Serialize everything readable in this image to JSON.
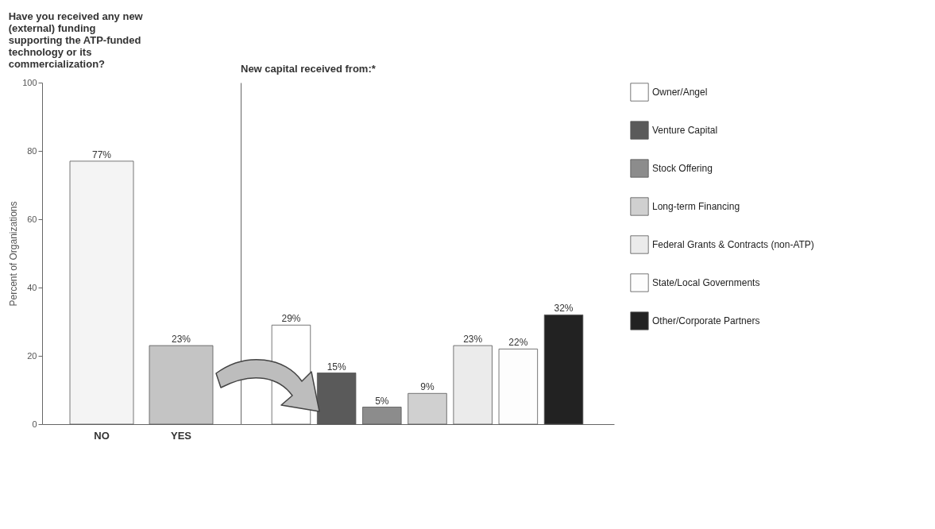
{
  "chart_data": [
    {
      "type": "bar",
      "title": "Have you received any new (external) funding supporting the ATP-funded technology or its commercialization?",
      "ylabel": "Percent of Organizations",
      "categories": [
        "NO",
        "YES"
      ],
      "values": [
        77,
        23
      ],
      "colors": [
        "#f4f4f4",
        "#c4c4c4"
      ],
      "value_labels": [
        "77%",
        "23%"
      ],
      "ylim": [
        0,
        100
      ],
      "yticks": [
        0,
        20,
        40,
        60,
        80,
        100
      ]
    },
    {
      "type": "bar",
      "title": "New capital received from:*",
      "categories": [
        null
      ],
      "ylim": [
        0,
        100
      ],
      "tick_labels": false,
      "legend": "right",
      "series": [
        {
          "name": "Owner/Angel",
          "color": "#ffffff",
          "values": [
            29
          ],
          "value_labels": [
            "29%"
          ]
        },
        {
          "name": "Venture Capital",
          "color": "#5a5a5a",
          "values": [
            15
          ],
          "value_labels": [
            "15%"
          ]
        },
        {
          "name": "Stock Offering",
          "color": "#8c8c8c",
          "values": [
            5
          ],
          "value_labels": [
            "5%"
          ]
        },
        {
          "name": "Long-term Financing",
          "color": "#d0d0d0",
          "values": [
            9
          ],
          "value_labels": [
            "9%"
          ]
        },
        {
          "name": "Federal Grants & Contracts (non-ATP)",
          "color": "#ebebeb",
          "values": [
            23
          ],
          "value_labels": [
            "23%"
          ]
        },
        {
          "name": "State/Local Governments",
          "color": "#fdfdfd",
          "values": [
            22
          ],
          "value_labels": [
            "22%"
          ]
        },
        {
          "name": "Other/Corporate Partners",
          "color": "#222222",
          "values": [
            32
          ],
          "value_labels": [
            "32%"
          ]
        }
      ]
    }
  ]
}
